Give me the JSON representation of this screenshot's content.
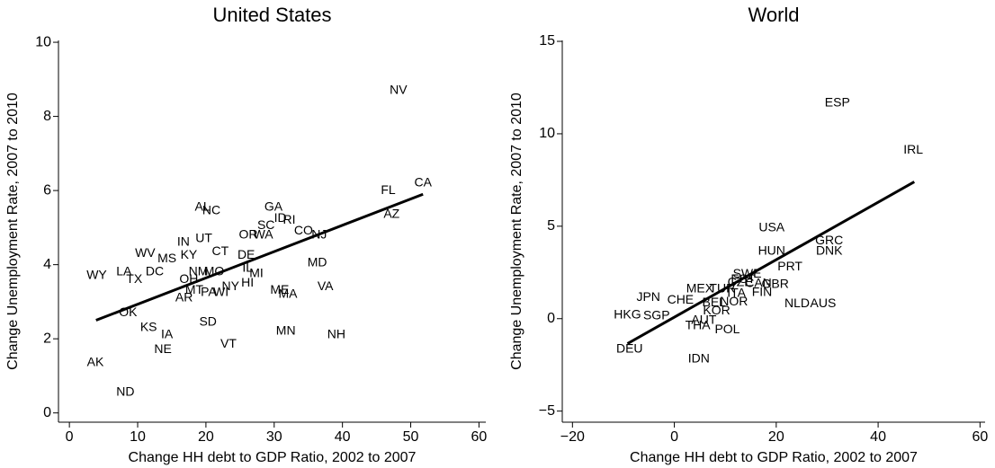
{
  "chart_data": [
    {
      "type": "scatter",
      "title": "United States",
      "x_label": "Change HH debt to GDP Ratio, 2002 to 2007",
      "y_label": "Change Unemployment Rate, 2007 to 2010",
      "xlim": [
        -1.6,
        61
      ],
      "ylim": [
        -0.25,
        10.05
      ],
      "xticks": [
        0,
        10,
        20,
        30,
        40,
        50,
        60
      ],
      "yticks": [
        0,
        2,
        4,
        6,
        8,
        10
      ],
      "label_color": "#1f1fe6",
      "line_color": "#000000",
      "labels": [
        "NV",
        "CA",
        "FL",
        "AZ",
        "AL",
        "NC",
        "GA",
        "ID",
        "RI",
        "SC",
        "WA",
        "OR",
        "CO",
        "NJ",
        "UT",
        "IN",
        "WV",
        "MS",
        "KY",
        "CT",
        "DE",
        "MD",
        "IL",
        "MI",
        "LA",
        "DC",
        "WY",
        "TX",
        "NM",
        "MO",
        "OH",
        "MT",
        "PA",
        "WI",
        "AR",
        "NY",
        "HI",
        "ME",
        "MA",
        "VA",
        "OK",
        "KS",
        "IA",
        "SD",
        "MN",
        "NH",
        "NE",
        "VT",
        "AK",
        "ND"
      ],
      "x": [
        48.2,
        51.8,
        46.7,
        47.2,
        19.5,
        20.8,
        29.9,
        30.9,
        32.2,
        28.8,
        28.4,
        26.2,
        34.3,
        36.6,
        19.7,
        16.7,
        11.1,
        14.3,
        17.5,
        22.1,
        25.9,
        36.3,
        26.1,
        27.4,
        8.0,
        12.5,
        4.0,
        9.5,
        18.9,
        21.2,
        17.5,
        18.3,
        20.4,
        22.2,
        16.8,
        23.6,
        26.1,
        30.8,
        32.0,
        37.5,
        8.6,
        11.6,
        14.3,
        20.3,
        31.7,
        39.1,
        13.7,
        23.3,
        3.8,
        8.2
      ],
      "y": [
        8.7,
        6.2,
        6.0,
        5.35,
        5.55,
        5.45,
        5.55,
        5.25,
        5.2,
        5.05,
        4.8,
        4.8,
        4.9,
        4.8,
        4.7,
        4.6,
        4.3,
        4.15,
        4.25,
        4.35,
        4.25,
        4.05,
        3.9,
        3.75,
        3.8,
        3.8,
        3.7,
        3.6,
        3.8,
        3.8,
        3.6,
        3.3,
        3.25,
        3.25,
        3.1,
        3.4,
        3.5,
        3.3,
        3.2,
        3.4,
        2.7,
        2.3,
        2.1,
        2.45,
        2.2,
        2.1,
        1.7,
        1.85,
        1.35,
        0.55
      ],
      "fit_line": {
        "x": [
          3.9,
          51.8
        ],
        "y": [
          2.5,
          5.9
        ]
      }
    },
    {
      "type": "scatter",
      "title": "World",
      "x_label": "Change HH debt to GDP Ratio, 2002 to 2007",
      "y_label": "Change Unemployment Rate, 2007 to 2010",
      "xlim": [
        -22,
        61
      ],
      "ylim": [
        -5.6,
        15.05
      ],
      "xticks": [
        {
          "value": -20,
          "label": "−20"
        },
        0,
        20,
        40,
        60
      ],
      "yticks": [
        {
          "value": -5,
          "label": "−5"
        },
        0,
        5,
        10,
        15
      ],
      "label_color": "#1f1fe6",
      "line_color": "#000000",
      "labels": [
        "ESP",
        "IRL",
        "USA",
        "GRC",
        "HUN",
        "DNK",
        "PRT",
        "SWE",
        "EST",
        "CZE",
        "CAN",
        "GBR",
        "FIN",
        "NLD",
        "AUS",
        "MEX",
        "TUR",
        "ITA",
        "JPN",
        "CHE",
        "BEL",
        "NOR",
        "KOR",
        "HKG",
        "SGP",
        "AUT",
        "THA",
        "POL",
        "DEU",
        "IDN"
      ],
      "x": [
        32.0,
        46.9,
        19.1,
        30.4,
        19.1,
        30.4,
        22.7,
        14.3,
        13.5,
        12.9,
        16.5,
        19.8,
        17.2,
        24.1,
        29.2,
        5.0,
        9.4,
        12.2,
        -5.1,
        1.2,
        7.8,
        11.7,
        8.3,
        -9.2,
        -3.5,
        5.8,
        4.6,
        10.4,
        -8.8,
        4.8
      ],
      "y": [
        11.65,
        9.1,
        4.9,
        4.2,
        3.65,
        3.65,
        2.8,
        2.4,
        2.1,
        1.95,
        1.9,
        1.85,
        1.4,
        0.8,
        0.8,
        1.6,
        1.6,
        1.35,
        1.15,
        1.0,
        0.85,
        0.9,
        0.4,
        0.2,
        0.15,
        -0.1,
        -0.4,
        -0.6,
        -1.65,
        -2.2
      ],
      "fit_line": {
        "x": [
          -9.2,
          47.1
        ],
        "y": [
          -1.35,
          7.4
        ]
      }
    }
  ]
}
